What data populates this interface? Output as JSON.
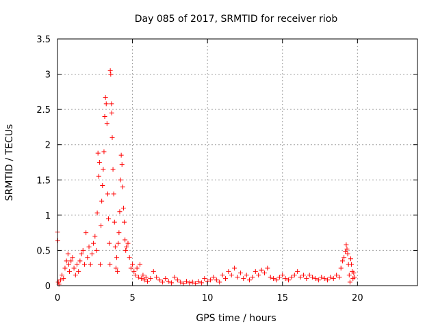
{
  "chart_data": {
    "type": "scatter",
    "title": "Day 085 of 2017, SRMTID for receiver riob",
    "xlabel": "GPS time / hours",
    "ylabel": "SRMTID / TECUs",
    "xlim": [
      0,
      24
    ],
    "ylim": [
      0,
      3.5
    ],
    "x_ticks": [
      {
        "value": 0,
        "label": "0"
      },
      {
        "value": 5,
        "label": "5"
      },
      {
        "value": 10,
        "label": "10"
      },
      {
        "value": 15,
        "label": "15"
      },
      {
        "value": 20,
        "label": "20"
      }
    ],
    "y_ticks": [
      {
        "value": 0,
        "label": "0"
      },
      {
        "value": 0.5,
        "label": "0.5"
      },
      {
        "value": 1,
        "label": "1"
      },
      {
        "value": 1.5,
        "label": "1.5"
      },
      {
        "value": 2,
        "label": "2"
      },
      {
        "value": 2.5,
        "label": "2.5"
      },
      {
        "value": 3,
        "label": "3"
      },
      {
        "value": 3.5,
        "label": "3.5"
      }
    ],
    "grid": true,
    "marker": "+",
    "marker_color": "#ff0000",
    "series": [
      {
        "name": "SRMTID",
        "points": [
          [
            0.0,
            0.76
          ],
          [
            0.02,
            0.64
          ],
          [
            0.05,
            0.05
          ],
          [
            0.1,
            0.02
          ],
          [
            0.2,
            0.08
          ],
          [
            0.3,
            0.15
          ],
          [
            0.4,
            0.1
          ],
          [
            0.5,
            0.25
          ],
          [
            0.6,
            0.35
          ],
          [
            0.7,
            0.45
          ],
          [
            0.75,
            0.3
          ],
          [
            0.8,
            0.2
          ],
          [
            0.9,
            0.35
          ],
          [
            1.0,
            0.4
          ],
          [
            1.1,
            0.25
          ],
          [
            1.2,
            0.15
          ],
          [
            1.3,
            0.3
          ],
          [
            1.4,
            0.2
          ],
          [
            1.5,
            0.35
          ],
          [
            1.6,
            0.45
          ],
          [
            1.7,
            0.5
          ],
          [
            1.8,
            0.3
          ],
          [
            1.9,
            0.75
          ],
          [
            2.0,
            0.4
          ],
          [
            2.1,
            0.55
          ],
          [
            2.2,
            0.3
          ],
          [
            2.3,
            0.45
          ],
          [
            2.4,
            0.6
          ],
          [
            2.5,
            0.7
          ],
          [
            2.6,
            0.5
          ],
          [
            2.65,
            1.03
          ],
          [
            2.7,
            1.88
          ],
          [
            2.75,
            1.55
          ],
          [
            2.8,
            1.75
          ],
          [
            2.85,
            0.3
          ],
          [
            2.9,
            0.85
          ],
          [
            2.95,
            1.2
          ],
          [
            3.0,
            1.42
          ],
          [
            3.05,
            1.65
          ],
          [
            3.1,
            1.9
          ],
          [
            3.15,
            2.4
          ],
          [
            3.2,
            2.67
          ],
          [
            3.25,
            2.58
          ],
          [
            3.3,
            2.3
          ],
          [
            3.35,
            1.3
          ],
          [
            3.4,
            0.95
          ],
          [
            3.45,
            0.6
          ],
          [
            3.5,
            0.3
          ],
          [
            3.52,
            3.05
          ],
          [
            3.55,
            3.0
          ],
          [
            3.6,
            2.58
          ],
          [
            3.62,
            2.45
          ],
          [
            3.65,
            2.1
          ],
          [
            3.7,
            1.65
          ],
          [
            3.75,
            1.3
          ],
          [
            3.8,
            0.9
          ],
          [
            3.85,
            0.55
          ],
          [
            3.9,
            0.25
          ],
          [
            3.95,
            0.4
          ],
          [
            4.0,
            0.2
          ],
          [
            4.05,
            0.6
          ],
          [
            4.1,
            0.75
          ],
          [
            4.15,
            1.05
          ],
          [
            4.2,
            1.5
          ],
          [
            4.25,
            1.85
          ],
          [
            4.3,
            1.72
          ],
          [
            4.35,
            1.4
          ],
          [
            4.4,
            1.1
          ],
          [
            4.45,
            0.9
          ],
          [
            4.5,
            0.65
          ],
          [
            4.55,
            0.5
          ],
          [
            4.6,
            0.55
          ],
          [
            4.7,
            0.6
          ],
          [
            4.8,
            0.4
          ],
          [
            4.9,
            0.25
          ],
          [
            5.0,
            0.3
          ],
          [
            5.1,
            0.2
          ],
          [
            5.2,
            0.15
          ],
          [
            5.3,
            0.25
          ],
          [
            5.4,
            0.12
          ],
          [
            5.5,
            0.3
          ],
          [
            5.6,
            0.1
          ],
          [
            5.7,
            0.15
          ],
          [
            5.8,
            0.08
          ],
          [
            5.9,
            0.12
          ],
          [
            6.0,
            0.06
          ],
          [
            6.2,
            0.1
          ],
          [
            6.4,
            0.2
          ],
          [
            6.6,
            0.12
          ],
          [
            6.8,
            0.08
          ],
          [
            7.0,
            0.05
          ],
          [
            7.2,
            0.1
          ],
          [
            7.4,
            0.06
          ],
          [
            7.6,
            0.04
          ],
          [
            7.8,
            0.12
          ],
          [
            8.0,
            0.08
          ],
          [
            8.2,
            0.05
          ],
          [
            8.4,
            0.03
          ],
          [
            8.6,
            0.06
          ],
          [
            8.8,
            0.04
          ],
          [
            9.0,
            0.05
          ],
          [
            9.2,
            0.03
          ],
          [
            9.4,
            0.06
          ],
          [
            9.6,
            0.04
          ],
          [
            9.8,
            0.1
          ],
          [
            10.0,
            0.06
          ],
          [
            10.2,
            0.08
          ],
          [
            10.4,
            0.12
          ],
          [
            10.6,
            0.08
          ],
          [
            10.8,
            0.05
          ],
          [
            11.0,
            0.15
          ],
          [
            11.2,
            0.1
          ],
          [
            11.4,
            0.2
          ],
          [
            11.6,
            0.15
          ],
          [
            11.8,
            0.25
          ],
          [
            12.0,
            0.12
          ],
          [
            12.2,
            0.18
          ],
          [
            12.4,
            0.1
          ],
          [
            12.6,
            0.15
          ],
          [
            12.8,
            0.08
          ],
          [
            13.0,
            0.12
          ],
          [
            13.2,
            0.2
          ],
          [
            13.4,
            0.15
          ],
          [
            13.6,
            0.22
          ],
          [
            13.8,
            0.18
          ],
          [
            14.0,
            0.25
          ],
          [
            14.2,
            0.12
          ],
          [
            14.4,
            0.1
          ],
          [
            14.6,
            0.08
          ],
          [
            14.8,
            0.12
          ],
          [
            15.0,
            0.15
          ],
          [
            15.2,
            0.1
          ],
          [
            15.4,
            0.08
          ],
          [
            15.6,
            0.12
          ],
          [
            15.8,
            0.15
          ],
          [
            16.0,
            0.2
          ],
          [
            16.2,
            0.12
          ],
          [
            16.4,
            0.15
          ],
          [
            16.6,
            0.1
          ],
          [
            16.8,
            0.15
          ],
          [
            17.0,
            0.12
          ],
          [
            17.2,
            0.1
          ],
          [
            17.4,
            0.08
          ],
          [
            17.6,
            0.12
          ],
          [
            17.8,
            0.1
          ],
          [
            18.0,
            0.08
          ],
          [
            18.2,
            0.12
          ],
          [
            18.4,
            0.1
          ],
          [
            18.6,
            0.15
          ],
          [
            18.8,
            0.12
          ],
          [
            18.9,
            0.25
          ],
          [
            19.0,
            0.35
          ],
          [
            19.1,
            0.4
          ],
          [
            19.2,
            0.48
          ],
          [
            19.25,
            0.58
          ],
          [
            19.3,
            0.52
          ],
          [
            19.35,
            0.45
          ],
          [
            19.4,
            0.3
          ],
          [
            19.45,
            0.15
          ],
          [
            19.5,
            0.05
          ],
          [
            19.55,
            0.38
          ],
          [
            19.6,
            0.3
          ],
          [
            19.65,
            0.2
          ],
          [
            19.7,
            0.1
          ],
          [
            19.75,
            0.18
          ],
          [
            19.8,
            0.12
          ]
        ]
      }
    ]
  }
}
